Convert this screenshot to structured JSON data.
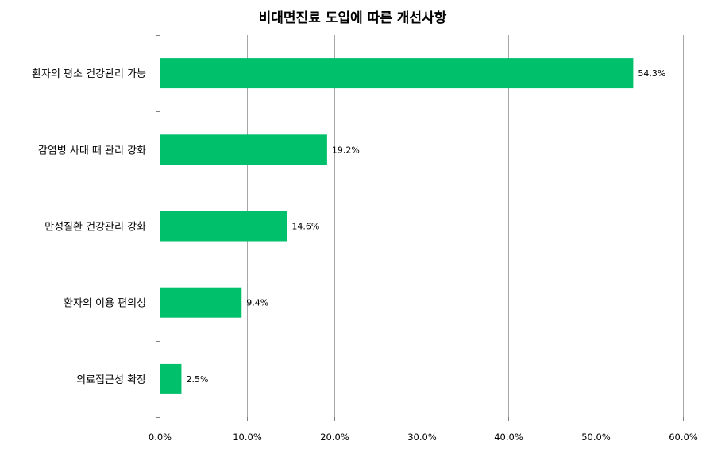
{
  "chart_data": {
    "type": "bar",
    "orientation": "horizontal",
    "title": "비대면진료 도입에 따른 개선사항",
    "categories": [
      "환자의 평소 건강관리 가능",
      "감염병 사태 때 관리 강화",
      "만성질환 건강관리 강화",
      "환자의 이용 편의성",
      "의료접근성 확장"
    ],
    "values": [
      54.3,
      19.2,
      14.6,
      9.4,
      2.5
    ],
    "data_labels": [
      "54.3%",
      "19.2%",
      "14.6%",
      "9.4%",
      "2.5%"
    ],
    "xlim": [
      0,
      60
    ],
    "x_ticks": [
      0,
      10,
      20,
      30,
      40,
      50,
      60
    ],
    "x_tick_labels": [
      "0.0%",
      "10.0%",
      "20.0%",
      "30.0%",
      "40.0%",
      "50.0%",
      "60.0%"
    ],
    "xlabel": "",
    "ylabel": "",
    "grid": true,
    "legend": "none",
    "bar_color": "#00c06b"
  }
}
